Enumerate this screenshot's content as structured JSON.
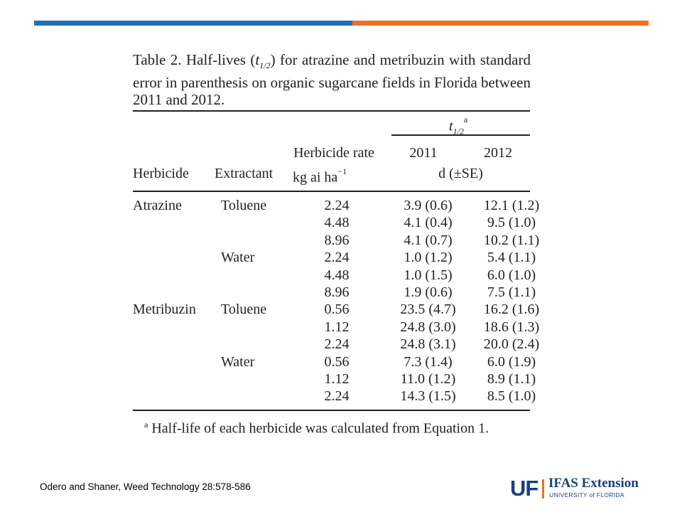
{
  "slide": {
    "accent_colors": {
      "blue": "#1f70b8",
      "orange": "#f26f21"
    }
  },
  "table": {
    "caption_prefix": "Table 2.  Half-lives (",
    "caption_t": "t",
    "caption_sub": "1/2",
    "caption_suffix": ") for atrazine and metribuzin with standard error in parenthesis on organic sugarcane fields in Florida between 2011 and 2012.",
    "header": {
      "t_half": "t",
      "t_half_sub": "1/2",
      "t_half_sup": "a",
      "herbicide": "Herbicide",
      "extractant": "Extractant",
      "rate_line1": "Herbicide rate",
      "rate_line2": "kg ai ha",
      "rate_exp": "−1",
      "year_2011": "2011",
      "year_2012": "2012",
      "unit": "d (±SE)"
    },
    "rows": [
      {
        "herbicide": "Atrazine",
        "extractant": "Toluene",
        "rate": "2.24",
        "y2011": "3.9 (0.6)",
        "y2012": "12.1 (1.2)"
      },
      {
        "herbicide": "",
        "extractant": "",
        "rate": "4.48",
        "y2011": "4.1 (0.4)",
        "y2012": "9.5 (1.0)"
      },
      {
        "herbicide": "",
        "extractant": "",
        "rate": "8.96",
        "y2011": "4.1 (0.7)",
        "y2012": "10.2 (1.1)"
      },
      {
        "herbicide": "",
        "extractant": "Water",
        "rate": "2.24",
        "y2011": "1.0 (1.2)",
        "y2012": "5.4 (1.1)"
      },
      {
        "herbicide": "",
        "extractant": "",
        "rate": "4.48",
        "y2011": "1.0 (1.5)",
        "y2012": "6.0 (1.0)"
      },
      {
        "herbicide": "",
        "extractant": "",
        "rate": "8.96",
        "y2011": "1.9 (0.6)",
        "y2012": "7.5 (1.1)"
      },
      {
        "herbicide": "Metribuzin",
        "extractant": "Toluene",
        "rate": "0.56",
        "y2011": "23.5 (4.7)",
        "y2012": "16.2 (1.6)"
      },
      {
        "herbicide": "",
        "extractant": "",
        "rate": "1.12",
        "y2011": "24.8 (3.0)",
        "y2012": "18.6 (1.3)"
      },
      {
        "herbicide": "",
        "extractant": "",
        "rate": "2.24",
        "y2011": "24.8 (3.1)",
        "y2012": "20.0 (2.4)"
      },
      {
        "herbicide": "",
        "extractant": "Water",
        "rate": "0.56",
        "y2011": "7.3 (1.4)",
        "y2012": "6.0 (1.9)"
      },
      {
        "herbicide": "",
        "extractant": "",
        "rate": "1.12",
        "y2011": "11.0 (1.2)",
        "y2012": "8.9 (1.1)"
      },
      {
        "herbicide": "",
        "extractant": "",
        "rate": "2.24",
        "y2011": "14.3 (1.5)",
        "y2012": "8.5 (1.0)"
      }
    ],
    "footnote_mark": "a",
    "footnote_text": " Half-life of each herbicide was calculated from Equation 1."
  },
  "citation": "Odero and Shaner, Weed Technology 28:578-586",
  "logo": {
    "uf": "UF",
    "ifas": "IFAS Extension",
    "university": "UNIVERSITY of FLORIDA"
  }
}
